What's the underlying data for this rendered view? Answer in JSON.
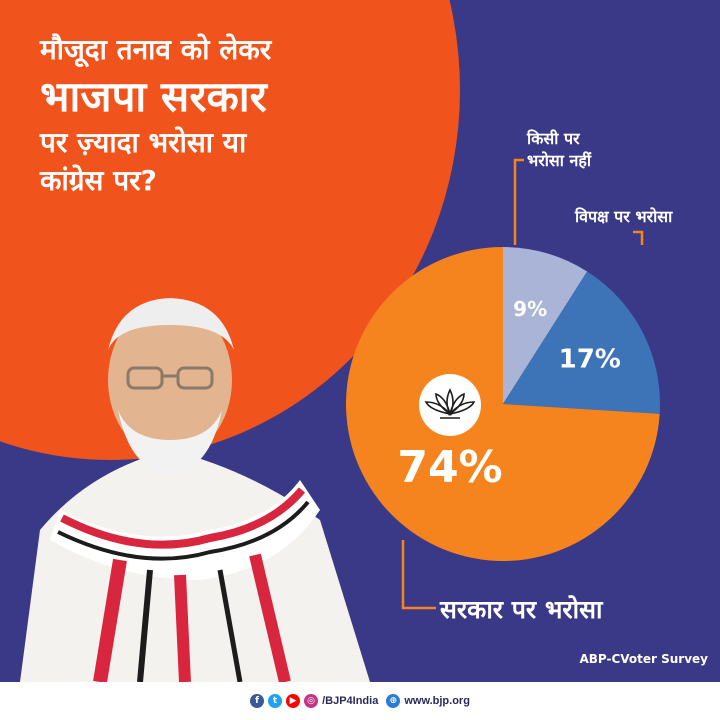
{
  "headline": {
    "line1": "मौजूदा तनाव को लेकर",
    "line2": "भाजपा सरकार",
    "line3": "पर ज़्यादा भरोसा या",
    "line4": "कांग्रेस पर?"
  },
  "chart_data": {
    "type": "pie",
    "title": "",
    "slices": [
      {
        "label": "सरकार पर भरोसा",
        "value": 74,
        "display": "74%",
        "color": "#f5841f"
      },
      {
        "label": "किसी पर भरोसा नहीं",
        "value": 9,
        "display": "9%",
        "color": "#a9b4d6"
      },
      {
        "label": "विपक्ष पर भरोसा",
        "value": 17,
        "display": "17%",
        "color": "#3d74b8"
      }
    ]
  },
  "callouts": {
    "no_trust_line1": "किसी पर",
    "no_trust_line2": "भरोसा नहीं",
    "opposition": "विपक्ष पर भरोसा",
    "government": "सरकार पर भरोसा"
  },
  "source": "ABP-CVoter Survey",
  "footer": {
    "handle": "/BJP4India",
    "website": "www.bjp.org"
  },
  "colors": {
    "orange_bg": "#f0531b",
    "blue_bg": "#3a3987",
    "callout_line": "#f5841f"
  }
}
